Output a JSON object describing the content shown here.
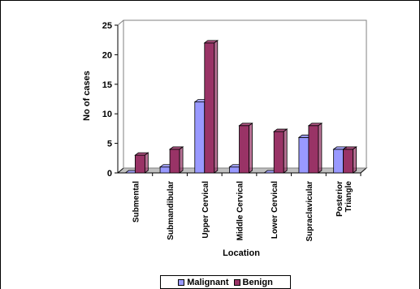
{
  "chart_data": {
    "type": "bar",
    "categories": [
      "Submental",
      "Submandibular",
      "Upper Cervical",
      "Middle Cervical",
      "Lower Cervical",
      "Supraclavicular",
      "Posterior\nTriangle"
    ],
    "series": [
      {
        "name": "Malignant",
        "values": [
          0,
          1,
          12,
          1,
          0,
          6,
          4
        ],
        "color": "#9999ff"
      },
      {
        "name": "Benign",
        "values": [
          3,
          4,
          22,
          8,
          7,
          8,
          4
        ],
        "color": "#993366"
      }
    ],
    "title": "",
    "xlabel": "Location",
    "ylabel": "No of cases",
    "ylim": [
      0,
      25
    ],
    "yticks": [
      "0",
      "5",
      "10",
      "15",
      "20",
      "25"
    ],
    "grid": false,
    "legend_position": "bottom",
    "style": "3d-bar"
  }
}
